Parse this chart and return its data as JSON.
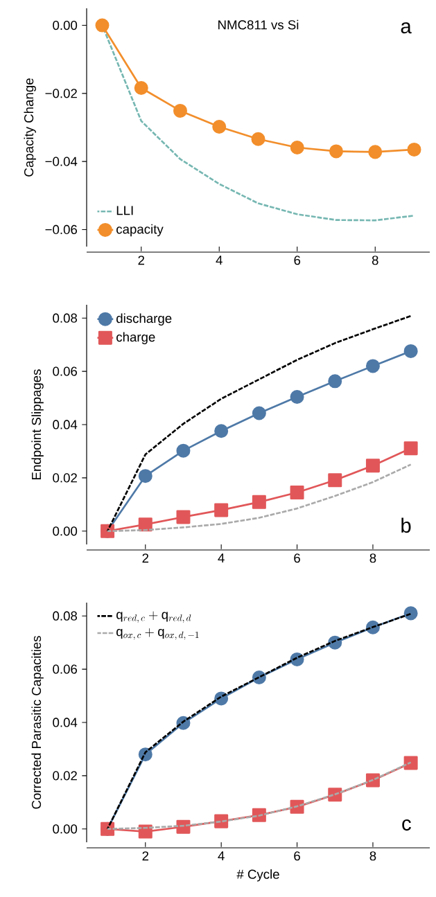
{
  "chart_data": [
    {
      "type": "line",
      "title": "NMC811 vs Si",
      "ylabel": "Capacity Change",
      "annotations": [
        "a"
      ],
      "legend": "bottom left",
      "x": [
        1,
        2,
        3,
        4,
        5,
        6,
        7,
        8,
        9
      ],
      "xlim": [
        0.6,
        9.4
      ],
      "ylim": [
        -0.065,
        0.005
      ],
      "xticks": [
        2,
        4,
        6,
        8
      ],
      "yticks": [
        {
          "value": 0,
          "label": "0.00"
        },
        {
          "value": -0.02,
          "label": "−0.02"
        },
        {
          "value": -0.04,
          "label": "−0.04"
        },
        {
          "value": -0.06,
          "label": "−0.06"
        }
      ],
      "series": [
        {
          "name": "LLI",
          "color": "#76b7b2",
          "line_style": "dashed",
          "marker": "none",
          "values": [
            0,
            -0.0281,
            -0.0393,
            -0.0466,
            -0.0523,
            -0.0555,
            -0.0572,
            -0.0573,
            -0.0559
          ]
        },
        {
          "name": "capacity",
          "color": "#f28e2b",
          "line_style": "solid",
          "marker": "circle",
          "values": [
            0,
            -0.0184,
            -0.0251,
            -0.0298,
            -0.0334,
            -0.0359,
            -0.037,
            -0.0372,
            -0.0365
          ]
        }
      ]
    },
    {
      "type": "line",
      "ylabel": "Endpoint Slippages",
      "annotations": [
        "b"
      ],
      "legend": "top left",
      "x": [
        1,
        2,
        3,
        4,
        5,
        6,
        7,
        8,
        9
      ],
      "xlim": [
        0.45,
        9.5
      ],
      "ylim": [
        -0.005,
        0.085
      ],
      "xticks": [
        2,
        4,
        6,
        8
      ],
      "yticks": [
        {
          "value": 0,
          "label": "0.00"
        },
        {
          "value": 0.02,
          "label": "0.02"
        },
        {
          "value": 0.04,
          "label": "0.04"
        },
        {
          "value": 0.06,
          "label": "0.06"
        },
        {
          "value": 0.08,
          "label": "0.08"
        }
      ],
      "series": [
        {
          "name": "discharge",
          "color": "#4e79a7",
          "line_style": "solid",
          "marker": "circle",
          "values": [
            0,
            0.0207,
            0.0302,
            0.0376,
            0.0443,
            0.0504,
            0.0563,
            0.062,
            0.0676
          ]
        },
        {
          "name": "charge",
          "color": "#e15759",
          "line_style": "solid",
          "marker": "square",
          "values": [
            0,
            0.0025,
            0.0053,
            0.0079,
            0.0109,
            0.0145,
            0.0191,
            0.0246,
            0.0311
          ]
        },
        {
          "color": "#000000",
          "line_style": "dashed",
          "marker": "none",
          "values": [
            0,
            0.0288,
            0.0403,
            0.0497,
            0.057,
            0.0643,
            0.0706,
            0.0758,
            0.0808
          ]
        },
        {
          "color": "#aaaaaa",
          "line_style": "dashed",
          "marker": "none",
          "values": [
            0,
            0.0004,
            0.0014,
            0.0027,
            0.005,
            0.0085,
            0.0132,
            0.0184,
            0.025
          ]
        }
      ]
    },
    {
      "type": "line",
      "ylabel": "Corrected Parasitic Capacities",
      "xlabel": "# Cycle",
      "annotations": [
        "c"
      ],
      "legend": "top left",
      "x": [
        1,
        2,
        3,
        4,
        5,
        6,
        7,
        8,
        9
      ],
      "xlim": [
        0.45,
        9.5
      ],
      "ylim": [
        -0.005,
        0.085
      ],
      "xticks": [
        2,
        4,
        6,
        8
      ],
      "yticks": [
        {
          "value": 0,
          "label": "0.00"
        },
        {
          "value": 0.02,
          "label": "0.02"
        },
        {
          "value": 0.04,
          "label": "0.04"
        },
        {
          "value": 0.06,
          "label": "0.06"
        },
        {
          "value": 0.08,
          "label": "0.08"
        }
      ],
      "series": [
        {
          "color": "#4e79a7",
          "line_style": "solid",
          "marker": "circle",
          "values": [
            0,
            0.028,
            0.0398,
            0.049,
            0.0569,
            0.0637,
            0.07,
            0.0757,
            0.081
          ]
        },
        {
          "color": "#e15759",
          "line_style": "solid",
          "marker": "square",
          "values": [
            0,
            -0.001,
            0.0008,
            0.0029,
            0.0052,
            0.0083,
            0.0129,
            0.0183,
            0.0248
          ]
        },
        {
          "name": "\\mathrm{q}_{red,\\,c} + \\mathrm{q}_{red,\\,d}",
          "color": "#000000",
          "line_style": "dashed",
          "marker": "none",
          "values": [
            0,
            0.0288,
            0.0403,
            0.0497,
            0.057,
            0.0643,
            0.0706,
            0.0758,
            0.0808
          ]
        },
        {
          "name": "\\mathrm{q}_{ox,\\,c} + \\mathrm{q}_{ox,\\,d,\\,-1}",
          "color": "#aaaaaa",
          "line_style": "dashed",
          "marker": "none",
          "values": [
            0,
            0.0004,
            0.0012,
            0.0028,
            0.005,
            0.0085,
            0.013,
            0.0184,
            0.025
          ]
        }
      ]
    }
  ]
}
